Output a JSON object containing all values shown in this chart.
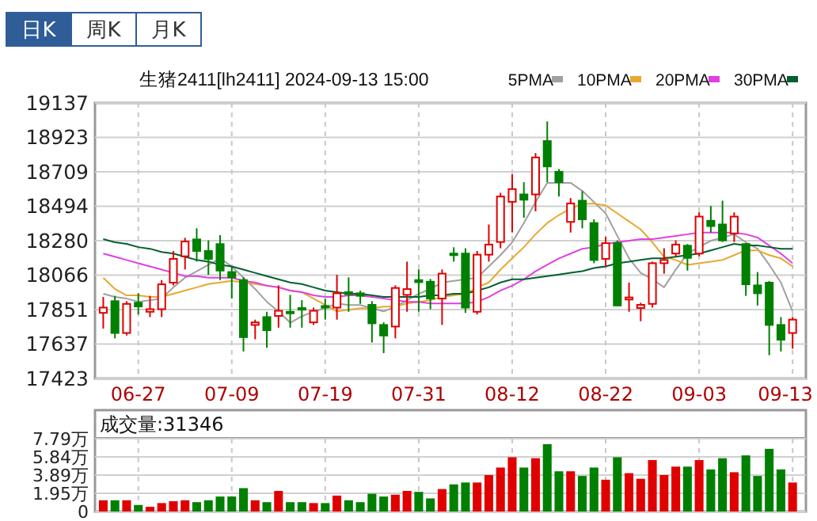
{
  "chart_data": [
    {
      "type": "candlestick",
      "title": "生猪2411[lh2411] 2024-09-13 15:00",
      "annotations": [
        "日K",
        "周K",
        "月K"
      ],
      "categories": [
        null,
        null,
        null,
        "06-27",
        null,
        null,
        null,
        null,
        null,
        null,
        null,
        "07-09",
        null,
        null,
        null,
        null,
        null,
        null,
        null,
        "07-19",
        null,
        null,
        null,
        null,
        null,
        null,
        null,
        "07-31",
        null,
        null,
        null,
        null,
        null,
        null,
        null,
        "08-12",
        null,
        null,
        null,
        null,
        null,
        null,
        null,
        "08-22",
        null,
        null,
        null,
        null,
        null,
        null,
        null,
        "09-03",
        null,
        null,
        null,
        null,
        null,
        null,
        null,
        "09-13"
      ],
      "ohlc": [
        [
          17831,
          17930,
          17733,
          17864
        ],
        [
          17904,
          17937,
          17673,
          17706
        ],
        [
          17706,
          17904,
          17690,
          17887
        ],
        [
          17894,
          17953,
          17821,
          17871
        ],
        [
          17838,
          17937,
          17805,
          17854
        ],
        [
          17854,
          18035,
          17805,
          18009
        ],
        [
          18019,
          18216,
          18002,
          18167
        ],
        [
          18183,
          18298,
          18101,
          18275
        ],
        [
          18288,
          18357,
          18150,
          18216
        ],
        [
          18216,
          18282,
          18068,
          18167
        ],
        [
          18259,
          18315,
          18035,
          18094
        ],
        [
          18085,
          18117,
          17920,
          18052
        ],
        [
          18035,
          18052,
          17591,
          17680
        ],
        [
          17756,
          17789,
          17667,
          17772
        ],
        [
          17805,
          17838,
          17614,
          17723
        ],
        [
          17812,
          18002,
          17739,
          17844
        ],
        [
          17838,
          17943,
          17739,
          17831
        ],
        [
          17861,
          17910,
          17739,
          17851
        ],
        [
          17772,
          17864,
          17756,
          17844
        ],
        [
          17874,
          17920,
          17789,
          17871
        ],
        [
          17864,
          18068,
          17789,
          17953
        ],
        [
          17960,
          18052,
          17838,
          17947
        ],
        [
          17953,
          17969,
          17887,
          17937
        ],
        [
          17881,
          17904,
          17647,
          17766
        ],
        [
          17756,
          17772,
          17581,
          17690
        ],
        [
          17746,
          18002,
          17673,
          17986
        ],
        [
          17943,
          18150,
          17838,
          17979
        ],
        [
          18035,
          18101,
          17838,
          18022
        ],
        [
          18025,
          18042,
          17854,
          17920
        ],
        [
          17920,
          18101,
          17756,
          18075
        ],
        [
          18200,
          18239,
          18150,
          18193
        ],
        [
          18200,
          18233,
          17831,
          17864
        ],
        [
          17838,
          18216,
          17821,
          18193
        ],
        [
          18193,
          18381,
          18150,
          18256
        ],
        [
          18272,
          18578,
          18233,
          18555
        ],
        [
          18522,
          18693,
          18331,
          18601
        ],
        [
          18568,
          18644,
          18423,
          18535
        ],
        [
          18568,
          18825,
          18463,
          18798
        ],
        [
          18900,
          19022,
          18644,
          18742
        ],
        [
          18709,
          18726,
          18555,
          18644
        ],
        [
          18397,
          18545,
          18331,
          18512
        ],
        [
          18529,
          18588,
          18357,
          18413
        ],
        [
          18390,
          18413,
          18140,
          18160
        ],
        [
          18167,
          18305,
          18117,
          18265
        ],
        [
          18265,
          18282,
          17871,
          17877
        ],
        [
          17914,
          18019,
          17838,
          17927
        ],
        [
          17861,
          17894,
          17779,
          17881
        ],
        [
          17887,
          18150,
          17864,
          18140
        ],
        [
          18140,
          18233,
          18075,
          18160
        ],
        [
          18200,
          18282,
          18183,
          18256
        ],
        [
          18249,
          18259,
          18094,
          18173
        ],
        [
          18200,
          18456,
          18183,
          18430
        ],
        [
          18404,
          18496,
          18331,
          18371
        ],
        [
          18381,
          18529,
          18272,
          18282
        ],
        [
          18325,
          18456,
          18272,
          18430
        ],
        [
          18259,
          18265,
          17937,
          18009
        ],
        [
          18002,
          18085,
          17877,
          17953
        ],
        [
          18019,
          18029,
          17568,
          17756
        ],
        [
          17756,
          17805,
          17591,
          17664
        ],
        [
          17706,
          17805,
          17608,
          17789
        ]
      ],
      "colors": [
        "#e00000",
        "#008000",
        "#e00000",
        "#008000",
        "#e00000",
        "#e00000",
        "#e00000",
        "#e00000",
        "#008000",
        "#008000",
        "#008000",
        "#008000",
        "#008000",
        "#e00000",
        "#008000",
        "#e00000",
        "#008000",
        "#008000",
        "#e00000",
        "#008000",
        "#e00000",
        "#008000",
        "#008000",
        "#008000",
        "#008000",
        "#e00000",
        "#e00000",
        "#008000",
        "#008000",
        "#e00000",
        "#008000",
        "#008000",
        "#e00000",
        "#e00000",
        "#e00000",
        "#e00000",
        "#008000",
        "#e00000",
        "#008000",
        "#008000",
        "#e00000",
        "#008000",
        "#008000",
        "#e00000",
        "#008000",
        "#e00000",
        "#e00000",
        "#e00000",
        "#e00000",
        "#e00000",
        "#008000",
        "#e00000",
        "#008000",
        "#008000",
        "#e00000",
        "#008000",
        "#008000",
        "#008000",
        "#008000",
        "#e00000"
      ],
      "series": [
        {
          "name": "5PMA",
          "type": "line",
          "color": "#a0a0a0",
          "values": [
            17950,
            17930,
            17920,
            17900,
            17910,
            17920,
            17990,
            18050,
            18090,
            18130,
            18170,
            18120,
            18050,
            17980,
            17900,
            17840,
            17770,
            17810,
            17840,
            17860,
            17890,
            17880,
            17880,
            17860,
            17840,
            17870,
            17910,
            17950,
            17980,
            18020,
            18030,
            18040,
            18050,
            18120,
            18190,
            18270,
            18390,
            18520,
            18640,
            18640,
            18640,
            18590,
            18520,
            18450,
            18310,
            18170,
            18080,
            18040,
            17990,
            18100,
            18200,
            18240,
            18280,
            18300,
            18320,
            18270,
            18230,
            18130,
            18020,
            17840
          ]
        },
        {
          "name": "10PMA",
          "type": "line",
          "color": "#e8a830",
          "values": [
            18050,
            17980,
            17940,
            17940,
            17930,
            17930,
            17950,
            17970,
            17990,
            18010,
            18020,
            18030,
            18020,
            18010,
            18000,
            17990,
            17970,
            17960,
            17920,
            17880,
            17840,
            17850,
            17860,
            17860,
            17870,
            17870,
            17890,
            17900,
            17910,
            17930,
            17940,
            17950,
            17990,
            18020,
            18100,
            18170,
            18240,
            18320,
            18390,
            18440,
            18480,
            18510,
            18510,
            18500,
            18450,
            18400,
            18350,
            18270,
            18180,
            18160,
            18130,
            18140,
            18150,
            18160,
            18190,
            18220,
            18220,
            18190,
            18170,
            18120
          ]
        },
        {
          "name": "20PMA",
          "type": "line",
          "color": "#e040e0",
          "values": [
            18200,
            18180,
            18160,
            18140,
            18120,
            18100,
            18080,
            18060,
            18060,
            18050,
            18050,
            18050,
            18030,
            18020,
            18000,
            17990,
            17970,
            17960,
            17940,
            17930,
            17930,
            17940,
            17940,
            17930,
            17920,
            17910,
            17900,
            17900,
            17890,
            17890,
            17890,
            17890,
            17900,
            17930,
            17970,
            18000,
            18040,
            18090,
            18130,
            18170,
            18200,
            18230,
            18240,
            18260,
            18270,
            18280,
            18290,
            18290,
            18300,
            18310,
            18320,
            18330,
            18330,
            18330,
            18330,
            18320,
            18300,
            18250,
            18200,
            18140
          ]
        },
        {
          "name": "30PMA",
          "type": "line",
          "color": "#006030",
          "values": [
            18290,
            18270,
            18260,
            18240,
            18230,
            18210,
            18200,
            18180,
            18160,
            18150,
            18130,
            18120,
            18100,
            18080,
            18060,
            18040,
            18020,
            18010,
            17990,
            17970,
            17960,
            17950,
            17950,
            17940,
            17930,
            17930,
            17930,
            17930,
            17940,
            17940,
            17950,
            17950,
            17970,
            17990,
            18020,
            18040,
            18040,
            18050,
            18060,
            18070,
            18080,
            18090,
            18110,
            18120,
            18140,
            18150,
            18160,
            18170,
            18170,
            18180,
            18190,
            18200,
            18220,
            18240,
            18260,
            18250,
            18250,
            18240,
            18230,
            18230
          ]
        }
      ],
      "ylim": [
        17423,
        19137
      ],
      "yticks": [
        17423,
        17637,
        17851,
        18066,
        18280,
        18494,
        18709,
        18923,
        19137
      ],
      "grid": true,
      "legend": "top right"
    },
    {
      "type": "bar",
      "title": "成交量:31346",
      "tick_labels": "y",
      "categories": [
        null,
        null,
        null,
        null,
        null,
        null,
        null,
        null,
        null,
        null,
        null,
        null,
        null,
        null,
        null,
        null,
        null,
        null,
        null,
        null,
        null,
        null,
        null,
        null,
        null,
        null,
        null,
        null,
        null,
        null,
        null,
        null,
        null,
        null,
        null,
        null,
        null,
        null,
        null,
        null,
        null,
        null,
        null,
        null,
        null,
        null,
        null,
        null,
        null,
        null,
        null,
        null,
        null,
        null,
        null,
        null,
        null,
        null,
        null,
        null
      ],
      "values": [
        1.2,
        1.2,
        1.2,
        0.7,
        0.5,
        0.9,
        1.1,
        1.2,
        1.0,
        1.2,
        1.6,
        1.6,
        2.5,
        1.2,
        1.0,
        2.2,
        1.0,
        1.0,
        0.9,
        0.9,
        1.7,
        1.2,
        1.0,
        1.9,
        1.6,
        1.8,
        2.2,
        2.1,
        1.4,
        2.4,
        2.9,
        3.1,
        3.1,
        3.9,
        4.7,
        5.8,
        4.7,
        5.7,
        7.2,
        4.3,
        4.3,
        3.8,
        4.7,
        3.4,
        5.8,
        4.1,
        3.5,
        5.5,
        3.9,
        4.8,
        4.8,
        5.5,
        4.5,
        5.7,
        4.2,
        6.0,
        3.8,
        6.7,
        4.5,
        3.1
      ],
      "colors": [
        "#e00000",
        "#008000",
        "#e00000",
        "#008000",
        "#e00000",
        "#e00000",
        "#e00000",
        "#e00000",
        "#008000",
        "#008000",
        "#008000",
        "#008000",
        "#008000",
        "#e00000",
        "#008000",
        "#e00000",
        "#008000",
        "#008000",
        "#e00000",
        "#008000",
        "#e00000",
        "#008000",
        "#008000",
        "#008000",
        "#008000",
        "#e00000",
        "#e00000",
        "#008000",
        "#008000",
        "#e00000",
        "#008000",
        "#008000",
        "#e00000",
        "#e00000",
        "#e00000",
        "#e00000",
        "#008000",
        "#e00000",
        "#008000",
        "#008000",
        "#e00000",
        "#008000",
        "#008000",
        "#e00000",
        "#008000",
        "#e00000",
        "#e00000",
        "#e00000",
        "#e00000",
        "#e00000",
        "#008000",
        "#e00000",
        "#008000",
        "#008000",
        "#e00000",
        "#008000",
        "#008000",
        "#008000",
        "#008000",
        "#e00000"
      ],
      "ylim": [
        0,
        7.79
      ],
      "yticks": [
        0,
        {
          "value": 1.95,
          "label": "1.95万"
        },
        {
          "value": 3.89,
          "label": "3.89万"
        },
        {
          "value": 5.84,
          "label": "5.84万"
        },
        {
          "value": 7.79,
          "label": "7.79万"
        }
      ],
      "grid": true
    }
  ]
}
